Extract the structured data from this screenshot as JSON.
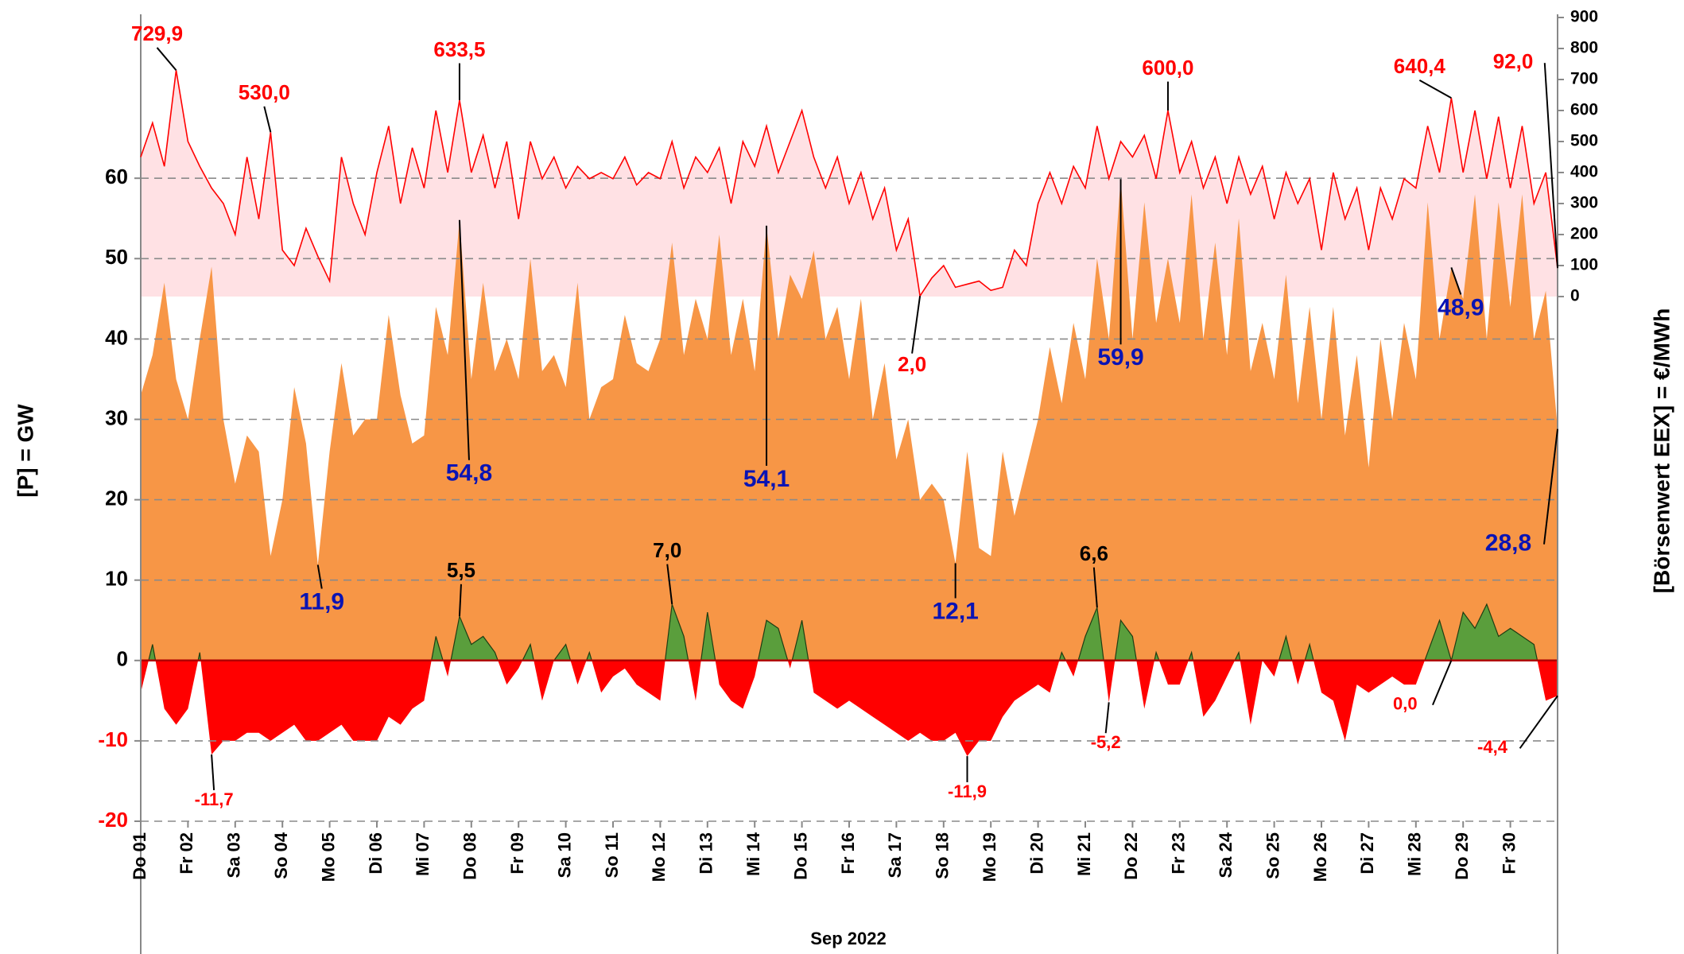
{
  "chart_data": {
    "type": "area",
    "ylabel": "[P]  =  GW",
    "y2label": "[Börsenwert  EEX]   =  €/MWh",
    "xlabel": "Sep 2022",
    "xlim": [
      0,
      30
    ],
    "ylim": [
      -20,
      80
    ],
    "yticks": [
      -20,
      -10,
      0,
      10,
      20,
      30,
      40,
      50,
      60
    ],
    "y2lim": [
      -1692,
      900
    ],
    "y2ticks": [
      0,
      100,
      200,
      300,
      400,
      500,
      600,
      700,
      800,
      900
    ],
    "grid": true,
    "negative_tick_color": "#ff0000",
    "xticks": [
      {
        "value": 0,
        "label": "Do 01"
      },
      {
        "value": 1,
        "label": "Fr 02"
      },
      {
        "value": 2,
        "label": "Sa 03"
      },
      {
        "value": 3,
        "label": "So 04"
      },
      {
        "value": 4,
        "label": "Mo 05"
      },
      {
        "value": 5,
        "label": "Di 06"
      },
      {
        "value": 6,
        "label": "Mi 07"
      },
      {
        "value": 7,
        "label": "Do 08"
      },
      {
        "value": 8,
        "label": "Fr 09"
      },
      {
        "value": 9,
        "label": "Sa 10"
      },
      {
        "value": 10,
        "label": "So 11"
      },
      {
        "value": 11,
        "label": "Mo 12"
      },
      {
        "value": 12,
        "label": "Di 13"
      },
      {
        "value": 13,
        "label": "Mi 14"
      },
      {
        "value": 14,
        "label": "Do 15"
      },
      {
        "value": 15,
        "label": "Fr 16"
      },
      {
        "value": 16,
        "label": "Sa 17"
      },
      {
        "value": 17,
        "label": "So 18"
      },
      {
        "value": 18,
        "label": "Mo 19"
      },
      {
        "value": 19,
        "label": "Di 20"
      },
      {
        "value": 20,
        "label": "Mi 21"
      },
      {
        "value": 21,
        "label": "Do 22"
      },
      {
        "value": 22,
        "label": "Fr 23"
      },
      {
        "value": 23,
        "label": "Sa 24"
      },
      {
        "value": 24,
        "label": "So 25"
      },
      {
        "value": 25,
        "label": "Mo 26"
      },
      {
        "value": 26,
        "label": "Di 27"
      },
      {
        "value": 27,
        "label": "Mi 28"
      },
      {
        "value": 28,
        "label": "Do 29"
      },
      {
        "value": 29,
        "label": "Fr 30"
      }
    ],
    "x": [
      0,
      0.25,
      0.5,
      0.75,
      1,
      1.25,
      1.5,
      1.75,
      2,
      2.25,
      2.5,
      2.75,
      3,
      3.25,
      3.5,
      3.75,
      4,
      4.25,
      4.5,
      4.75,
      5,
      5.25,
      5.5,
      5.75,
      6,
      6.25,
      6.5,
      6.75,
      7,
      7.25,
      7.5,
      7.75,
      8,
      8.25,
      8.5,
      8.75,
      9,
      9.25,
      9.5,
      9.75,
      10,
      10.25,
      10.5,
      10.75,
      11,
      11.25,
      11.5,
      11.75,
      12,
      12.25,
      12.5,
      12.75,
      13,
      13.25,
      13.5,
      13.75,
      14,
      14.25,
      14.5,
      14.75,
      15,
      15.25,
      15.5,
      15.75,
      16,
      16.25,
      16.5,
      16.75,
      17,
      17.25,
      17.5,
      17.75,
      18,
      18.25,
      18.5,
      18.75,
      19,
      19.25,
      19.5,
      19.75,
      20,
      20.25,
      20.5,
      20.75,
      21,
      21.25,
      21.5,
      21.75,
      22,
      22.25,
      22.5,
      22.75,
      23,
      23.25,
      23.5,
      23.75,
      24,
      24.25,
      24.5,
      24.75,
      25,
      25.25,
      25.5,
      25.75,
      26,
      26.25,
      26.5,
      26.75,
      27,
      27.25,
      27.5,
      27.75,
      28,
      28.25,
      28.5,
      28.75,
      29,
      29.25,
      29.5,
      29.75,
      30
    ],
    "series": [
      {
        "type": "area",
        "color": "#f79646",
        "label_color": "#0a14b4",
        "values": [
          33,
          38,
          47,
          35,
          30,
          40,
          49,
          30,
          22,
          28,
          26,
          13,
          20,
          34,
          27,
          11.9,
          26,
          37,
          28,
          30,
          30,
          43,
          33,
          27,
          28,
          44,
          38,
          54.8,
          35,
          47,
          36,
          40,
          35,
          50,
          36,
          38,
          34,
          47,
          30,
          34,
          35,
          43,
          37,
          36,
          40,
          52,
          38,
          45,
          40,
          53,
          38,
          45,
          36,
          54.1,
          40,
          48,
          45,
          51,
          40,
          44,
          35,
          45,
          30,
          37,
          25,
          30,
          20,
          22,
          20,
          12.1,
          26,
          14,
          13,
          26,
          18,
          24,
          30,
          39,
          32,
          42,
          35,
          50,
          40,
          59.9,
          40,
          57,
          42,
          50,
          42,
          58,
          40,
          52,
          38,
          55,
          36,
          42,
          35,
          48,
          32,
          44,
          30,
          44,
          28,
          38,
          24,
          40,
          30,
          42,
          35,
          57,
          40,
          48.9,
          45,
          58,
          40,
          57,
          44,
          58,
          40,
          46,
          28.8
        ],
        "value_labels": [
          null,
          null,
          null,
          null,
          null,
          null,
          null,
          null,
          null,
          null,
          null,
          null,
          null,
          null,
          null,
          "11,9",
          null,
          null,
          null,
          null,
          null,
          null,
          null,
          null,
          null,
          null,
          null,
          "54,8",
          null,
          null,
          null,
          null,
          null,
          null,
          null,
          null,
          null,
          null,
          null,
          null,
          null,
          null,
          null,
          null,
          null,
          null,
          null,
          null,
          null,
          null,
          null,
          null,
          null,
          "54,1",
          null,
          null,
          null,
          null,
          null,
          null,
          null,
          null,
          null,
          null,
          null,
          null,
          null,
          null,
          null,
          "12,1",
          null,
          null,
          null,
          null,
          null,
          null,
          null,
          null,
          null,
          null,
          null,
          null,
          null,
          "59,9",
          null,
          null,
          null,
          null,
          null,
          null,
          null,
          null,
          null,
          null,
          null,
          null,
          null,
          null,
          null,
          null,
          null,
          null,
          null,
          null,
          null,
          null,
          null,
          null,
          null,
          null,
          null,
          "48,9",
          null,
          null,
          null,
          null,
          null,
          null,
          null,
          null,
          "28,8"
        ]
      },
      {
        "type": "area",
        "color": "#5a9e3c",
        "negative_color": "#ff0000",
        "label_color": "#000000",
        "values": [
          -4,
          2,
          -6,
          -8,
          -6,
          1,
          -11.7,
          -10,
          -10,
          -9,
          -9,
          -10,
          -9,
          -8,
          -10,
          -10,
          -9,
          -8,
          -10,
          -10,
          -10,
          -7,
          -8,
          -6,
          -5,
          3,
          -2,
          5.5,
          2,
          3,
          1,
          -3,
          -1,
          2,
          -5,
          0,
          2,
          -3,
          1,
          -4,
          -2,
          -1,
          -3,
          -4,
          -5,
          7.0,
          3,
          -5,
          6,
          -3,
          -5,
          -6,
          -2,
          5,
          4,
          -1,
          5,
          -4,
          -5,
          -6,
          -5,
          -6,
          -7,
          -8,
          -9,
          -10,
          -9,
          -10,
          -10,
          -9,
          -11.9,
          -10,
          -10,
          -7,
          -5,
          -4,
          -3,
          -4,
          1,
          -2,
          3,
          6.6,
          -5.2,
          5,
          3,
          -6,
          1,
          -3,
          -3,
          1,
          -7,
          -5,
          -2,
          1,
          -8,
          0,
          -2,
          3,
          -3,
          2,
          -4,
          -5,
          -10,
          -3,
          -4,
          -3,
          -2,
          -3,
          -3,
          1,
          5,
          0.0,
          6,
          4,
          7,
          3,
          4,
          3,
          2,
          -5,
          -4.4
        ],
        "value_labels": [
          null,
          null,
          null,
          null,
          null,
          null,
          "-11,7",
          null,
          null,
          null,
          null,
          null,
          null,
          null,
          null,
          null,
          null,
          null,
          null,
          null,
          null,
          null,
          null,
          null,
          null,
          null,
          null,
          "5,5",
          null,
          null,
          null,
          null,
          null,
          null,
          null,
          null,
          null,
          null,
          null,
          null,
          null,
          null,
          null,
          null,
          null,
          "7,0",
          null,
          null,
          null,
          null,
          null,
          null,
          null,
          null,
          null,
          null,
          null,
          null,
          null,
          null,
          null,
          null,
          null,
          null,
          null,
          null,
          null,
          null,
          null,
          null,
          "-11,9",
          null,
          null,
          null,
          null,
          null,
          null,
          null,
          null,
          null,
          null,
          "6,6",
          "-5,2",
          null,
          null,
          null,
          null,
          null,
          null,
          null,
          null,
          null,
          null,
          null,
          null,
          null,
          null,
          null,
          null,
          null,
          null,
          null,
          null,
          null,
          null,
          null,
          null,
          null,
          null,
          null,
          null,
          "0,0",
          null,
          null,
          null,
          null,
          null,
          null,
          null,
          null,
          "-4,4"
        ]
      },
      {
        "type": "line",
        "axis": "y2",
        "color": "#ff0000",
        "fill": "#ffe1e4",
        "label_color": "#ff0000",
        "values": [
          450,
          560,
          420,
          729.9,
          500,
          420,
          350,
          300,
          200,
          450,
          250,
          530.0,
          150,
          100,
          220,
          130,
          50,
          450,
          300,
          200,
          400,
          550,
          300,
          480,
          350,
          600,
          400,
          633.5,
          400,
          520,
          350,
          500,
          250,
          500,
          380,
          450,
          350,
          420,
          380,
          400,
          380,
          450,
          360,
          400,
          380,
          500,
          350,
          450,
          400,
          480,
          300,
          500,
          420,
          550,
          400,
          500,
          600,
          450,
          350,
          450,
          300,
          400,
          250,
          350,
          150,
          250,
          2.0,
          60,
          100,
          30,
          40,
          50,
          20,
          30,
          150,
          100,
          300,
          400,
          300,
          420,
          350,
          550,
          380,
          500,
          450,
          520,
          380,
          600.0,
          400,
          500,
          350,
          450,
          300,
          450,
          330,
          420,
          250,
          400,
          300,
          380,
          150,
          400,
          250,
          350,
          150,
          350,
          250,
          380,
          350,
          550,
          400,
          640.4,
          400,
          600,
          380,
          580,
          350,
          550,
          300,
          400,
          92.0
        ],
        "value_labels": [
          null,
          null,
          null,
          "729,9",
          null,
          null,
          null,
          null,
          null,
          null,
          null,
          "530,0",
          null,
          null,
          null,
          null,
          null,
          null,
          null,
          null,
          null,
          null,
          null,
          null,
          null,
          null,
          null,
          "633,5",
          null,
          null,
          null,
          null,
          null,
          null,
          null,
          null,
          null,
          null,
          null,
          null,
          null,
          null,
          null,
          null,
          null,
          null,
          null,
          null,
          null,
          null,
          null,
          null,
          null,
          null,
          null,
          null,
          null,
          null,
          null,
          null,
          null,
          null,
          null,
          null,
          null,
          null,
          "2,0",
          null,
          null,
          null,
          null,
          null,
          null,
          null,
          null,
          null,
          null,
          null,
          null,
          null,
          null,
          null,
          null,
          null,
          null,
          null,
          null,
          "600,0",
          null,
          null,
          null,
          null,
          null,
          null,
          null,
          null,
          null,
          null,
          null,
          null,
          null,
          null,
          null,
          null,
          null,
          null,
          null,
          null,
          null,
          null,
          null,
          "640,4",
          null,
          null,
          null,
          null,
          null,
          null,
          null,
          null,
          "92,0"
        ]
      }
    ]
  }
}
